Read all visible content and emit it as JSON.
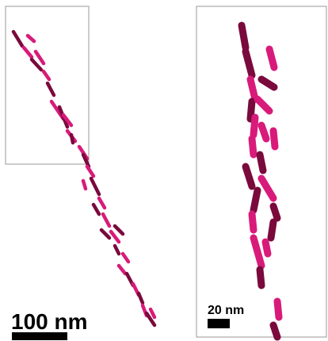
{
  "scale_bars": [
    {
      "label": "100 nm"
    },
    {
      "label": "20 nm"
    }
  ]
}
